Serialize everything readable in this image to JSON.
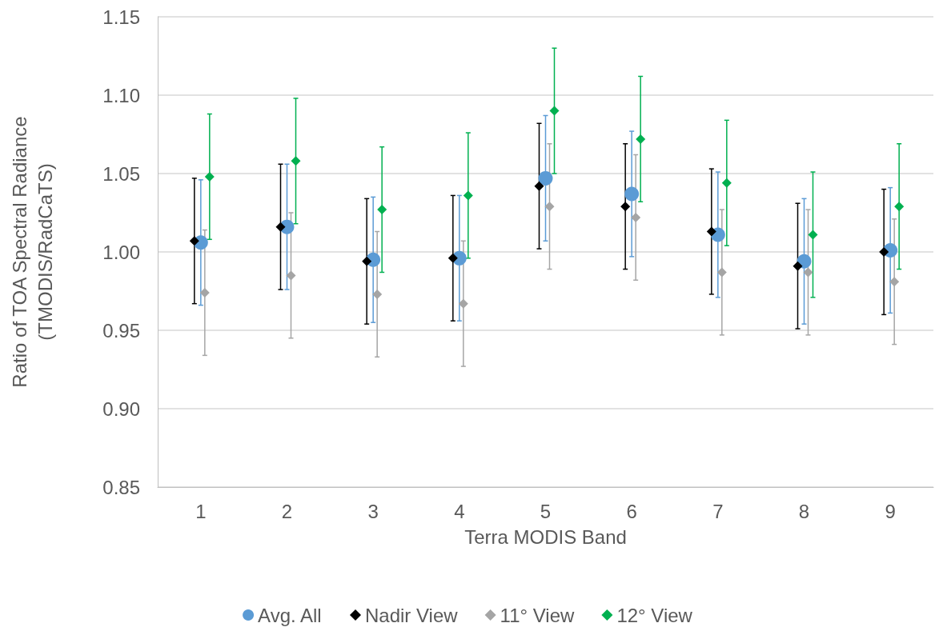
{
  "chart_data": {
    "type": "scatter",
    "xlabel": "Terra MODIS Band",
    "ylabel": "Ratio of TOA Spectral Radiance\n(TMODIS/RadCaTS)",
    "categories": [
      "1",
      "2",
      "3",
      "4",
      "5",
      "6",
      "7",
      "8",
      "9"
    ],
    "series": [
      {
        "name": "Avg. All",
        "color": "#5b9bd5",
        "marker": "circle",
        "values": [
          1.006,
          1.016,
          0.995,
          0.996,
          1.047,
          1.037,
          1.011,
          0.994,
          1.001
        ],
        "errors": [
          0.04,
          0.04,
          0.04,
          0.04,
          0.04,
          0.04,
          0.04,
          0.04,
          0.04
        ]
      },
      {
        "name": "Nadir View",
        "color": "#000000",
        "marker": "diamond",
        "values": [
          1.007,
          1.016,
          0.994,
          0.996,
          1.042,
          1.029,
          1.013,
          0.991,
          1.0
        ],
        "errors": [
          0.04,
          0.04,
          0.04,
          0.04,
          0.04,
          0.04,
          0.04,
          0.04,
          0.04
        ]
      },
      {
        "name": "11° View",
        "color": "#a5a5a5",
        "marker": "diamond",
        "values": [
          0.974,
          0.985,
          0.973,
          0.967,
          1.029,
          1.022,
          0.987,
          0.987,
          0.981
        ],
        "errors": [
          0.04,
          0.04,
          0.04,
          0.04,
          0.04,
          0.04,
          0.04,
          0.04,
          0.04
        ]
      },
      {
        "name": "12° View",
        "color": "#00b050",
        "marker": "diamond",
        "values": [
          1.048,
          1.058,
          1.027,
          1.036,
          1.09,
          1.072,
          1.044,
          1.011,
          1.029
        ],
        "errors": [
          0.04,
          0.04,
          0.04,
          0.04,
          0.04,
          0.04,
          0.04,
          0.04,
          0.04
        ]
      }
    ],
    "ylim": [
      0.85,
      1.15
    ],
    "yticks": [
      {
        "value": 0.85,
        "label": "0.85"
      },
      {
        "value": 0.9,
        "label": "0.90"
      },
      {
        "value": 0.95,
        "label": "0.95"
      },
      {
        "value": 1.0,
        "label": "1.00"
      },
      {
        "value": 1.05,
        "label": "1.05"
      },
      {
        "value": 1.1,
        "label": "1.10"
      },
      {
        "value": 1.15,
        "label": "1.15"
      }
    ],
    "grid": "y",
    "legend": "bottom"
  }
}
